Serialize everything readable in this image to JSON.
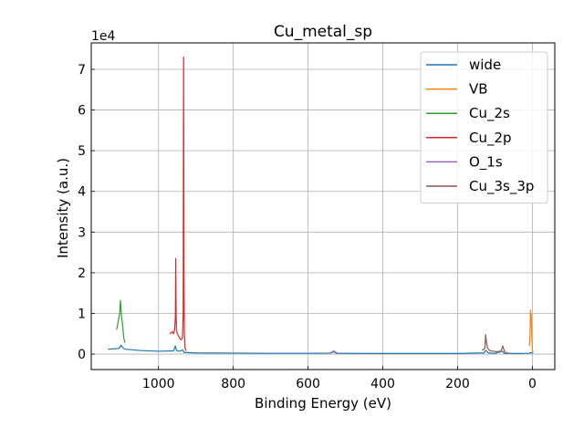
{
  "chart_data": {
    "type": "line",
    "title": "Cu_metal_sp",
    "xlabel": "Binding Energy (eV)",
    "ylabel": "Intensity (a.u.)",
    "y_multiplier_label": "1e4",
    "y_scale": 10000,
    "x_reversed": true,
    "xlim": [
      1180,
      -60
    ],
    "ylim": [
      -3800,
      76500
    ],
    "xticks": [
      1000,
      800,
      600,
      400,
      200,
      0
    ],
    "yticks": [
      0,
      10000,
      20000,
      30000,
      40000,
      50000,
      60000,
      70000
    ],
    "grid": true,
    "legend_position": "top-right",
    "series": [
      {
        "name": "wide",
        "color": "#1f77b4",
        "points": [
          [
            1135,
            1200
          ],
          [
            1120,
            1300
          ],
          [
            1110,
            1350
          ],
          [
            1105,
            1450
          ],
          [
            1100,
            2200
          ],
          [
            1097,
            1700
          ],
          [
            1090,
            1200
          ],
          [
            1050,
            900
          ],
          [
            1000,
            700
          ],
          [
            960,
            800
          ],
          [
            955,
            2000
          ],
          [
            952,
            900
          ],
          [
            945,
            700
          ],
          [
            935,
            1000
          ],
          [
            932,
            400
          ],
          [
            900,
            300
          ],
          [
            800,
            250
          ],
          [
            700,
            200
          ],
          [
            600,
            200
          ],
          [
            540,
            250
          ],
          [
            530,
            600
          ],
          [
            525,
            200
          ],
          [
            400,
            150
          ],
          [
            300,
            150
          ],
          [
            200,
            150
          ],
          [
            130,
            300
          ],
          [
            124,
            900
          ],
          [
            118,
            300
          ],
          [
            100,
            200
          ],
          [
            80,
            700
          ],
          [
            75,
            200
          ],
          [
            40,
            150
          ],
          [
            10,
            200
          ],
          [
            3,
            400
          ],
          [
            0,
            100
          ]
        ]
      },
      {
        "name": "VB",
        "color": "#ff7f0e",
        "points": [
          [
            8,
            2000
          ],
          [
            7,
            3500
          ],
          [
            6,
            6500
          ],
          [
            5,
            10800
          ],
          [
            4,
            8000
          ],
          [
            3,
            9800
          ],
          [
            2,
            5000
          ],
          [
            1,
            3500
          ],
          [
            0,
            1200
          ],
          [
            -2,
            300
          ]
        ]
      },
      {
        "name": "Cu_2s",
        "color": "#2ca02c",
        "points": [
          [
            1112,
            6000
          ],
          [
            1110,
            7000
          ],
          [
            1108,
            8000
          ],
          [
            1106,
            9000
          ],
          [
            1104,
            10000
          ],
          [
            1102,
            13200
          ],
          [
            1100,
            10500
          ],
          [
            1099,
            9000
          ],
          [
            1097,
            8000
          ],
          [
            1095,
            6000
          ],
          [
            1093,
            4000
          ],
          [
            1090,
            2800
          ]
        ]
      },
      {
        "name": "Cu_2p",
        "color": "#d62728",
        "points": [
          [
            970,
            5000
          ],
          [
            966,
            5300
          ],
          [
            963,
            5500
          ],
          [
            960,
            5000
          ],
          [
            957,
            6000
          ],
          [
            955,
            9000
          ],
          [
            954,
            23500
          ],
          [
            953,
            10000
          ],
          [
            952,
            6000
          ],
          [
            950,
            5000
          ],
          [
            947,
            4500
          ],
          [
            944,
            4000
          ],
          [
            940,
            3500
          ],
          [
            936,
            4000
          ],
          [
            934,
            10000
          ],
          [
            933,
            73000
          ],
          [
            932,
            20000
          ],
          [
            931,
            5000
          ],
          [
            929,
            1500
          ],
          [
            926,
            800
          ]
        ]
      },
      {
        "name": "O_1s",
        "color": "#9467bd",
        "points": [
          [
            545,
            200
          ],
          [
            538,
            400
          ],
          [
            534,
            600
          ],
          [
            531,
            800
          ],
          [
            529,
            600
          ],
          [
            525,
            400
          ],
          [
            520,
            200
          ]
        ]
      },
      {
        "name": "Cu_3s_3p",
        "color": "#8c564b",
        "points": [
          [
            135,
            1000
          ],
          [
            130,
            1100
          ],
          [
            127,
            1600
          ],
          [
            125,
            4800
          ],
          [
            123,
            3000
          ],
          [
            120,
            1500
          ],
          [
            115,
            900
          ],
          [
            105,
            700
          ],
          [
            95,
            600
          ],
          [
            85,
            700
          ],
          [
            82,
            1200
          ],
          [
            79,
            2000
          ],
          [
            77,
            1300
          ],
          [
            74,
            600
          ],
          [
            70,
            300
          ],
          [
            60,
            200
          ]
        ]
      }
    ]
  }
}
